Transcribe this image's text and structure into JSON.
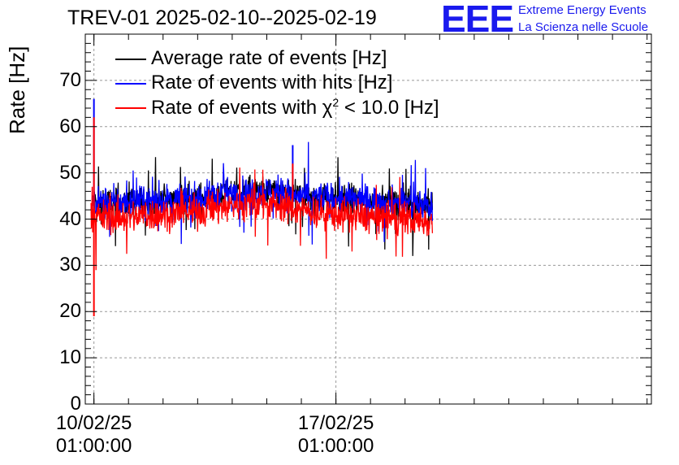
{
  "header": {
    "title": "TREV-01 2025-02-10--2025-02-19",
    "logo_text": "EEE",
    "logo_line1": "Extreme Energy Events",
    "logo_line2": "La Scienza nelle Scuole",
    "logo_color": "#1a1aee"
  },
  "chart_data": {
    "type": "line",
    "title": "TREV-01 2025-02-10--2025-02-19",
    "ylabel": "Rate [Hz]",
    "xlabel": "",
    "ylim": [
      0,
      80
    ],
    "xlim": [
      "2025-02-09 19:00",
      "2025-02-26 04:00"
    ],
    "yticks": [
      0,
      10,
      20,
      30,
      40,
      50,
      60,
      70
    ],
    "xticks": [
      {
        "x": "2025-02-10 01:00:00",
        "line1": "10/02/25",
        "line2": "01:00:00"
      },
      {
        "x": "2025-02-17 01:00:00",
        "line1": "17/02/25",
        "line2": "01:00:00"
      }
    ],
    "grid": true,
    "legend_position": "top-left",
    "series": [
      {
        "name": "Average rate of events [Hz]",
        "color": "#000000",
        "x": [
          "2025-02-10 00:00",
          "2025-02-11 00:00",
          "2025-02-12 00:00",
          "2025-02-13 00:00",
          "2025-02-14 00:00",
          "2025-02-15 00:00",
          "2025-02-16 00:00",
          "2025-02-17 00:00",
          "2025-02-18 00:00",
          "2025-02-19 00:00",
          "2025-02-19 20:00"
        ],
        "values": [
          43.5,
          43.5,
          44,
          44.5,
          45.5,
          46,
          45,
          44.5,
          44,
          43.5,
          43
        ]
      },
      {
        "name": "Rate of events with hits [Hz]",
        "color": "#0000ff",
        "x": [
          "2025-02-09 23:00",
          "2025-02-10 00:00",
          "2025-02-11 00:00",
          "2025-02-12 00:00",
          "2025-02-13 00:00",
          "2025-02-14 00:00",
          "2025-02-15 00:00",
          "2025-02-16 00:00",
          "2025-02-17 00:00",
          "2025-02-18 00:00",
          "2025-02-19 00:00",
          "2025-02-19 20:00"
        ],
        "values": [
          43,
          43.5,
          43.5,
          44,
          44.5,
          45.5,
          46,
          45,
          44.5,
          44,
          43.5,
          43
        ],
        "spikes": [
          {
            "x": "2025-02-10 01:00",
            "value": 66
          },
          {
            "x": "2025-02-15 19:00",
            "value": 56
          }
        ]
      },
      {
        "name": "Rate of events with χ² < 10.0 [Hz]",
        "name_prefix": "Rate of events with ",
        "name_symbol": "χ",
        "name_superscript": "2",
        "name_suffix": " < 10.0 [Hz]",
        "color": "#ff0000",
        "x": [
          "2025-02-09 23:00",
          "2025-02-10 00:00",
          "2025-02-11 00:00",
          "2025-02-12 00:00",
          "2025-02-13 00:00",
          "2025-02-14 00:00",
          "2025-02-15 00:00",
          "2025-02-16 00:00",
          "2025-02-17 00:00",
          "2025-02-18 00:00",
          "2025-02-19 00:00",
          "2025-02-19 20:00"
        ],
        "values": [
          40,
          40.5,
          40.5,
          41,
          41.5,
          43,
          43.5,
          42,
          41,
          40.5,
          40,
          39.5
        ],
        "spikes": [
          {
            "x": "2025-02-10 01:00",
            "value": 62
          },
          {
            "x": "2025-02-10 01:00",
            "value": 19
          },
          {
            "x": "2025-02-15 19:00",
            "value": 52
          }
        ]
      }
    ]
  }
}
